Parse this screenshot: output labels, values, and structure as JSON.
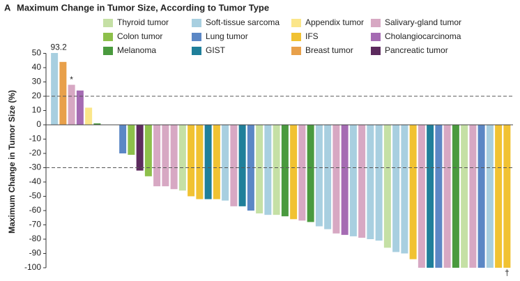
{
  "chart_data": {
    "type": "bar",
    "panel": "A",
    "title": "Maximum Change in Tumor Size, According to Tumor Type",
    "y_label": "Maximum Change in Tumor Size (%)",
    "ylim": [
      -100,
      50
    ],
    "yticks": [
      50,
      40,
      30,
      20,
      10,
      0,
      -10,
      -20,
      -30,
      -40,
      -50,
      -60,
      -70,
      -80,
      -90,
      -100
    ],
    "reference_lines": [
      20,
      -30
    ],
    "categories": [
      null,
      null,
      null,
      null,
      null,
      null,
      null,
      null,
      null,
      null,
      null,
      null,
      null,
      null,
      null,
      null,
      null,
      null,
      null,
      null,
      null,
      null,
      null,
      null,
      null,
      null,
      null,
      null,
      null,
      null,
      null,
      null,
      null,
      null,
      null,
      null,
      null,
      null,
      null,
      null,
      null,
      null,
      null,
      null,
      null,
      null,
      null,
      null,
      null,
      null,
      null,
      null,
      null,
      null
    ],
    "annotations": [
      {
        "text": "*",
        "x": 2
      },
      {
        "text": "†",
        "x": 53
      }
    ],
    "series": [
      {
        "name": "Thyroid tumor",
        "color": "#c5e0a5",
        "values": [
          null,
          null,
          null,
          null,
          null,
          null,
          null,
          null,
          null,
          null,
          null,
          null,
          null,
          null,
          null,
          -46,
          null,
          null,
          null,
          null,
          null,
          null,
          null,
          null,
          -62,
          null,
          -63,
          null,
          null,
          null,
          null,
          null,
          null,
          null,
          null,
          null,
          null,
          null,
          null,
          -86,
          null,
          null,
          null,
          null,
          null,
          null,
          null,
          null,
          -100,
          null,
          null,
          null,
          null,
          null
        ]
      },
      {
        "name": "Colon tumor",
        "color": "#8dc04b",
        "values": [
          null,
          null,
          null,
          null,
          null,
          null,
          null,
          null,
          null,
          -21,
          null,
          -36,
          null,
          null,
          null,
          null,
          null,
          null,
          null,
          null,
          null,
          null,
          null,
          null,
          null,
          null,
          null,
          null,
          null,
          null,
          null,
          null,
          null,
          null,
          null,
          null,
          null,
          null,
          null,
          null,
          null,
          null,
          null,
          null,
          null,
          null,
          null,
          null,
          null,
          null,
          null,
          null,
          null,
          null
        ]
      },
      {
        "name": "Melanoma",
        "color": "#4a9a3e",
        "values": [
          null,
          null,
          null,
          null,
          null,
          1,
          null,
          null,
          null,
          null,
          null,
          null,
          null,
          null,
          null,
          null,
          null,
          null,
          null,
          null,
          null,
          null,
          null,
          null,
          null,
          null,
          null,
          -64,
          null,
          null,
          -68,
          null,
          null,
          null,
          null,
          null,
          null,
          null,
          null,
          null,
          null,
          null,
          null,
          null,
          null,
          null,
          null,
          -100,
          null,
          null,
          null,
          null,
          null,
          null
        ]
      },
      {
        "name": "Soft-tissue sarcoma",
        "color": "#a8cfe0",
        "values": [
          93.2,
          null,
          null,
          null,
          null,
          null,
          null,
          null,
          null,
          null,
          null,
          null,
          null,
          null,
          null,
          null,
          null,
          null,
          null,
          null,
          -53,
          null,
          null,
          null,
          null,
          -63,
          null,
          null,
          null,
          null,
          null,
          -71,
          -73,
          null,
          null,
          -78,
          null,
          -80,
          -81,
          null,
          -89,
          -90,
          null,
          null,
          null,
          null,
          null,
          null,
          null,
          null,
          null,
          -100,
          null,
          null
        ],
        "value_labels": [
          "93.2",
          null,
          null,
          null,
          null,
          null,
          null,
          null,
          null,
          null,
          null,
          null,
          null,
          null,
          null,
          null,
          null,
          null,
          null,
          null,
          null,
          null,
          null,
          null,
          null,
          null,
          null,
          null,
          null,
          null,
          null,
          null,
          null,
          null,
          null,
          null,
          null,
          null,
          null,
          null,
          null,
          null,
          null,
          null,
          null,
          null,
          null,
          null,
          null,
          null,
          null,
          null,
          null,
          null
        ]
      },
      {
        "name": "Lung tumor",
        "color": "#5b87c5",
        "values": [
          null,
          null,
          null,
          null,
          null,
          null,
          null,
          null,
          -20,
          null,
          null,
          null,
          null,
          null,
          null,
          null,
          null,
          null,
          null,
          null,
          null,
          null,
          null,
          -60,
          null,
          null,
          null,
          null,
          null,
          null,
          null,
          null,
          null,
          null,
          null,
          null,
          null,
          null,
          null,
          null,
          null,
          null,
          null,
          null,
          null,
          -100,
          null,
          null,
          null,
          null,
          -100,
          null,
          null,
          null
        ]
      },
      {
        "name": "GIST",
        "color": "#1f7f9a",
        "values": [
          null,
          null,
          null,
          null,
          null,
          null,
          null,
          null,
          null,
          null,
          null,
          null,
          null,
          null,
          null,
          null,
          null,
          null,
          -52,
          null,
          null,
          null,
          -57,
          null,
          null,
          null,
          null,
          null,
          null,
          null,
          null,
          null,
          null,
          null,
          null,
          null,
          null,
          null,
          null,
          null,
          null,
          null,
          null,
          null,
          -100,
          null,
          null,
          null,
          null,
          null,
          null,
          null,
          null,
          null
        ]
      },
      {
        "name": "Appendix tumor",
        "color": "#fbe68a",
        "values": [
          null,
          null,
          null,
          null,
          12,
          null,
          null,
          null,
          null,
          null,
          null,
          null,
          null,
          null,
          null,
          null,
          null,
          null,
          null,
          null,
          null,
          null,
          null,
          null,
          null,
          null,
          null,
          null,
          null,
          null,
          null,
          null,
          null,
          null,
          null,
          null,
          null,
          null,
          null,
          null,
          null,
          null,
          null,
          null,
          null,
          null,
          null,
          null,
          null,
          null,
          null,
          null,
          null,
          null
        ]
      },
      {
        "name": "IFS",
        "color": "#f1c232",
        "values": [
          null,
          null,
          null,
          null,
          null,
          null,
          null,
          null,
          null,
          null,
          null,
          null,
          null,
          null,
          null,
          null,
          -50,
          -52,
          null,
          -52,
          null,
          null,
          null,
          null,
          null,
          null,
          null,
          null,
          -66,
          null,
          null,
          null,
          null,
          null,
          null,
          null,
          null,
          null,
          null,
          null,
          null,
          null,
          -94,
          null,
          null,
          null,
          null,
          null,
          null,
          null,
          null,
          null,
          -100,
          -100
        ]
      },
      {
        "name": "Breast tumor",
        "color": "#e8a04a",
        "values": [
          null,
          44,
          null,
          null,
          null,
          null,
          null,
          null,
          null,
          null,
          null,
          null,
          null,
          null,
          null,
          null,
          null,
          null,
          null,
          null,
          null,
          null,
          null,
          null,
          null,
          null,
          null,
          null,
          null,
          null,
          null,
          null,
          null,
          null,
          null,
          null,
          null,
          null,
          null,
          null,
          null,
          null,
          null,
          null,
          null,
          null,
          null,
          null,
          null,
          null,
          null,
          null,
          null,
          null
        ]
      },
      {
        "name": "Salivary-gland tumor",
        "color": "#d7a8c3",
        "values": [
          null,
          null,
          28,
          null,
          null,
          null,
          null,
          null,
          null,
          null,
          null,
          null,
          -43,
          -43,
          -45,
          null,
          null,
          null,
          null,
          null,
          null,
          -57,
          null,
          null,
          null,
          null,
          null,
          null,
          null,
          -67,
          null,
          null,
          null,
          -76,
          null,
          null,
          -79,
          null,
          null,
          null,
          null,
          null,
          null,
          -100,
          null,
          null,
          -100,
          null,
          null,
          -100,
          null,
          null,
          null,
          null
        ]
      },
      {
        "name": "Cholangiocarcinoma",
        "color": "#a56bb3",
        "values": [
          null,
          null,
          null,
          24,
          null,
          null,
          null,
          null,
          null,
          null,
          null,
          null,
          null,
          null,
          null,
          null,
          null,
          null,
          null,
          null,
          null,
          null,
          null,
          null,
          null,
          null,
          null,
          null,
          null,
          null,
          null,
          null,
          null,
          null,
          -77,
          null,
          null,
          null,
          null,
          null,
          null,
          null,
          null,
          null,
          null,
          null,
          null,
          null,
          null,
          null,
          null,
          null,
          null,
          null
        ]
      },
      {
        "name": "Pancreatic tumor",
        "color": "#5c2a5e",
        "values": [
          null,
          null,
          null,
          null,
          null,
          null,
          null,
          null,
          null,
          null,
          -32,
          null,
          null,
          null,
          null,
          null,
          null,
          null,
          null,
          null,
          null,
          null,
          null,
          null,
          null,
          null,
          null,
          null,
          null,
          null,
          null,
          null,
          null,
          null,
          null,
          null,
          null,
          null,
          null,
          null,
          null,
          null,
          null,
          null,
          null,
          null,
          null,
          null,
          null,
          null,
          null,
          null,
          null,
          null
        ]
      }
    ]
  }
}
